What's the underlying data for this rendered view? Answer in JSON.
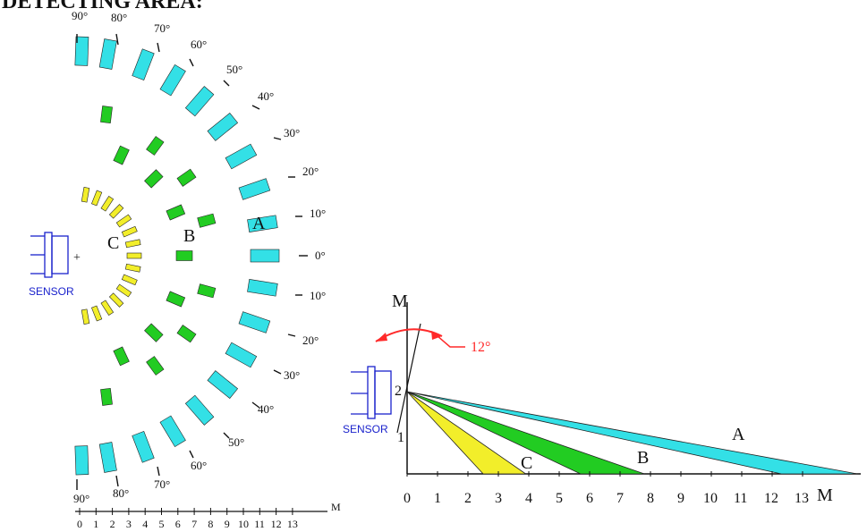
{
  "header": {
    "title": "DETECTING   AREA:"
  },
  "colors": {
    "zone_a": "#33e0e6",
    "zone_b": "#22cc22",
    "zone_c": "#f2ee2a",
    "sensor": "#1a22cc",
    "tilt": "#ff2a2a",
    "ink": "#111111"
  },
  "top_view": {
    "zone_labels": {
      "a": "A",
      "b": "B",
      "c": "C"
    },
    "origin_mark": "+",
    "sensor_label": "SENSOR",
    "angle_labels_upper": [
      "90°",
      "80°",
      "70°",
      "60°",
      "50°",
      "40°",
      "30°",
      "20°",
      "10°"
    ],
    "angle_label_zero": "0°",
    "angle_labels_lower": [
      "10°",
      "20°",
      "30°",
      "40°",
      "50°",
      "60°",
      "70°",
      "80°",
      "90°"
    ],
    "axis_unit": "M",
    "axis_ticks": [
      "0",
      "1",
      "2",
      "3",
      "4",
      "5",
      "6",
      "7",
      "8",
      "9",
      "10",
      "11",
      "12",
      "13"
    ]
  },
  "side_view": {
    "vertical_axis_label": "M",
    "vertical_ticks": [
      "1",
      "2"
    ],
    "horizontal_axis_label": "M",
    "horizontal_ticks": [
      "0",
      "1",
      "2",
      "3",
      "4",
      "5",
      "6",
      "7",
      "8",
      "9",
      "10",
      "11",
      "12",
      "13"
    ],
    "tilt_angle_label": "12°",
    "sensor_label": "SENSOR",
    "sensor_height_m": 2,
    "tilt_angle_deg": 12,
    "zones": [
      {
        "label": "A",
        "range_m": [
          12.3,
          14.8
        ]
      },
      {
        "label": "B",
        "range_m": [
          5.7,
          7.8
        ]
      },
      {
        "label": "C",
        "range_m": [
          2.5,
          3.9
        ]
      }
    ]
  }
}
